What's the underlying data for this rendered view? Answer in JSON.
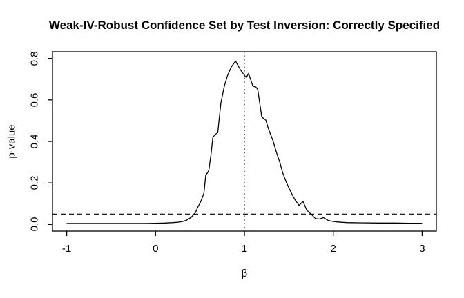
{
  "title": "Weak-IV-Robust Confidence Set by Test Inversion: Correctly Specified",
  "colors": {
    "background": "#ffffff",
    "foreground": "#000000",
    "curve": "#000000",
    "reference_lines": "#000000"
  },
  "chart_data": {
    "type": "line",
    "title": "Weak-IV-Robust Confidence Set by Test Inversion: Correctly Specified",
    "xlabel": "β",
    "ylabel": "p-value",
    "xlim": [
      -1.16,
      3.16
    ],
    "ylim": [
      -0.032,
      0.832
    ],
    "x_data_range": [
      -1,
      3
    ],
    "y_data_range": [
      0,
      0.8
    ],
    "grid": false,
    "legend": false,
    "xticks": [
      -1,
      0,
      1,
      2,
      3
    ],
    "xtick_labels": [
      "-1",
      "0",
      "1",
      "2",
      "3"
    ],
    "yticks": [
      0.0,
      0.2,
      0.4,
      0.6,
      0.8
    ],
    "ytick_labels": [
      "0.0",
      "0.2",
      "0.4",
      "0.6",
      "0.8"
    ],
    "reference_lines": {
      "horizontal_dashed": {
        "value": 0.05,
        "style": "dashed",
        "meaning": "significance level 0.05"
      },
      "vertical_dotted": {
        "value": 1.0,
        "style": "dotted",
        "meaning": "true beta = 1"
      }
    },
    "series": [
      {
        "name": "p-value function",
        "points": [
          [
            -1.0,
            0.005
          ],
          [
            -0.9,
            0.005
          ],
          [
            -0.8,
            0.005
          ],
          [
            -0.7,
            0.005
          ],
          [
            -0.6,
            0.005
          ],
          [
            -0.5,
            0.005
          ],
          [
            -0.4,
            0.005
          ],
          [
            -0.3,
            0.005
          ],
          [
            -0.2,
            0.005
          ],
          [
            -0.1,
            0.005
          ],
          [
            0.0,
            0.006
          ],
          [
            0.1,
            0.007
          ],
          [
            0.2,
            0.009
          ],
          [
            0.25,
            0.011
          ],
          [
            0.3,
            0.014
          ],
          [
            0.35,
            0.021
          ],
          [
            0.4,
            0.034
          ],
          [
            0.45,
            0.058
          ],
          [
            0.475,
            0.083
          ],
          [
            0.5,
            0.102
          ],
          [
            0.525,
            0.128
          ],
          [
            0.545,
            0.152
          ],
          [
            0.565,
            0.238
          ],
          [
            0.59,
            0.252
          ],
          [
            0.6,
            0.262
          ],
          [
            0.625,
            0.34
          ],
          [
            0.645,
            0.42
          ],
          [
            0.675,
            0.435
          ],
          [
            0.7,
            0.442
          ],
          [
            0.735,
            0.585
          ],
          [
            0.775,
            0.668
          ],
          [
            0.81,
            0.717
          ],
          [
            0.85,
            0.757
          ],
          [
            0.9,
            0.787
          ],
          [
            0.955,
            0.745
          ],
          [
            1.02,
            0.707
          ],
          [
            1.047,
            0.727
          ],
          [
            1.095,
            0.667
          ],
          [
            1.13,
            0.662
          ],
          [
            1.15,
            0.65
          ],
          [
            1.195,
            0.518
          ],
          [
            1.24,
            0.503
          ],
          [
            1.275,
            0.455
          ],
          [
            1.32,
            0.405
          ],
          [
            1.36,
            0.348
          ],
          [
            1.4,
            0.297
          ],
          [
            1.43,
            0.25
          ],
          [
            1.47,
            0.205
          ],
          [
            1.51,
            0.168
          ],
          [
            1.545,
            0.138
          ],
          [
            1.575,
            0.115
          ],
          [
            1.615,
            0.092
          ],
          [
            1.66,
            0.111
          ],
          [
            1.7,
            0.07
          ],
          [
            1.75,
            0.05
          ],
          [
            1.8,
            0.028
          ],
          [
            1.845,
            0.026
          ],
          [
            1.89,
            0.033
          ],
          [
            1.94,
            0.02
          ],
          [
            1.98,
            0.016
          ],
          [
            2.05,
            0.012
          ],
          [
            2.15,
            0.009
          ],
          [
            2.3,
            0.008
          ],
          [
            2.5,
            0.007
          ],
          [
            2.7,
            0.007
          ],
          [
            2.85,
            0.006
          ],
          [
            3.0,
            0.006
          ]
        ]
      }
    ]
  }
}
